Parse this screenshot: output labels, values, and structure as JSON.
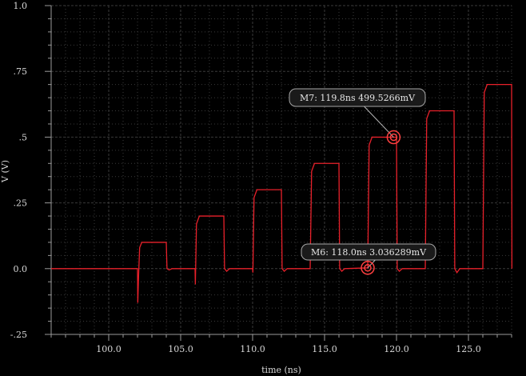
{
  "chart_data": {
    "type": "line",
    "title": "",
    "xlabel": "time (ns)",
    "ylabel": "V (V)",
    "xlim": [
      96.0,
      128.0
    ],
    "ylim": [
      -0.25,
      1.0
    ],
    "grid": true,
    "x_ticks": [
      {
        "value": 100.0,
        "label": "100.0"
      },
      {
        "value": 105.0,
        "label": "105.0"
      },
      {
        "value": 110.0,
        "label": "110.0"
      },
      {
        "value": 115.0,
        "label": "115.0"
      },
      {
        "value": 120.0,
        "label": "120.0"
      },
      {
        "value": 125.0,
        "label": "125.0"
      }
    ],
    "y_ticks": [
      {
        "value": 1.0,
        "label": "1.0"
      },
      {
        "value": 0.75,
        "label": ".75"
      },
      {
        "value": 0.5,
        "label": ".5"
      },
      {
        "value": 0.25,
        "label": ".25"
      },
      {
        "value": 0.0,
        "label": "0.0"
      },
      {
        "value": -0.25,
        "label": "-.25"
      }
    ],
    "series": [
      {
        "color": "#e8202a",
        "points": [
          [
            96.0,
            0.0
          ],
          [
            102.0,
            0.0
          ],
          [
            102.02,
            -0.13
          ],
          [
            102.08,
            -0.02
          ],
          [
            102.15,
            0.08
          ],
          [
            102.3,
            0.1
          ],
          [
            104.0,
            0.1
          ],
          [
            104.05,
            0.0
          ],
          [
            104.2,
            -0.005
          ],
          [
            104.4,
            0.0
          ],
          [
            106.0,
            0.0
          ],
          [
            106.02,
            -0.06
          ],
          [
            106.1,
            0.17
          ],
          [
            106.3,
            0.2
          ],
          [
            108.0,
            0.2
          ],
          [
            108.05,
            0.0
          ],
          [
            108.2,
            -0.01
          ],
          [
            108.4,
            0.0
          ],
          [
            110.0,
            0.0
          ],
          [
            110.02,
            -0.015
          ],
          [
            110.1,
            0.27
          ],
          [
            110.3,
            0.3
          ],
          [
            112.0,
            0.3
          ],
          [
            112.05,
            0.0
          ],
          [
            112.2,
            -0.01
          ],
          [
            112.4,
            0.0
          ],
          [
            114.0,
            0.0
          ],
          [
            114.1,
            0.37
          ],
          [
            114.3,
            0.4
          ],
          [
            116.0,
            0.4
          ],
          [
            116.05,
            0.0
          ],
          [
            116.2,
            -0.01
          ],
          [
            116.4,
            0.0
          ],
          [
            118.0,
            0.003
          ],
          [
            118.1,
            0.47
          ],
          [
            118.3,
            0.5
          ],
          [
            119.8,
            0.4995
          ],
          [
            120.0,
            0.5
          ],
          [
            120.05,
            0.0
          ],
          [
            120.2,
            -0.01
          ],
          [
            120.4,
            0.0
          ],
          [
            122.0,
            0.0
          ],
          [
            122.1,
            0.57
          ],
          [
            122.3,
            0.6
          ],
          [
            124.0,
            0.6
          ],
          [
            124.05,
            0.0
          ],
          [
            124.2,
            -0.015
          ],
          [
            124.4,
            0.0
          ],
          [
            126.0,
            0.0
          ],
          [
            126.1,
            0.67
          ],
          [
            126.3,
            0.7
          ],
          [
            128.0,
            0.7
          ],
          [
            128.02,
            0.0
          ]
        ]
      }
    ],
    "markers": [
      {
        "name": "M7",
        "x": 119.8,
        "y": 0.4995266,
        "label": "M7: 119.8ns 499.5266mV"
      },
      {
        "name": "M6",
        "x": 118.0,
        "y": 0.003036289,
        "label": "M6: 118.0ns 3.036289mV"
      }
    ],
    "colors": {
      "background": "#000000",
      "grid": "#3a3a3a",
      "trace": "#e8202a",
      "axis": "#9a9a9a"
    }
  }
}
